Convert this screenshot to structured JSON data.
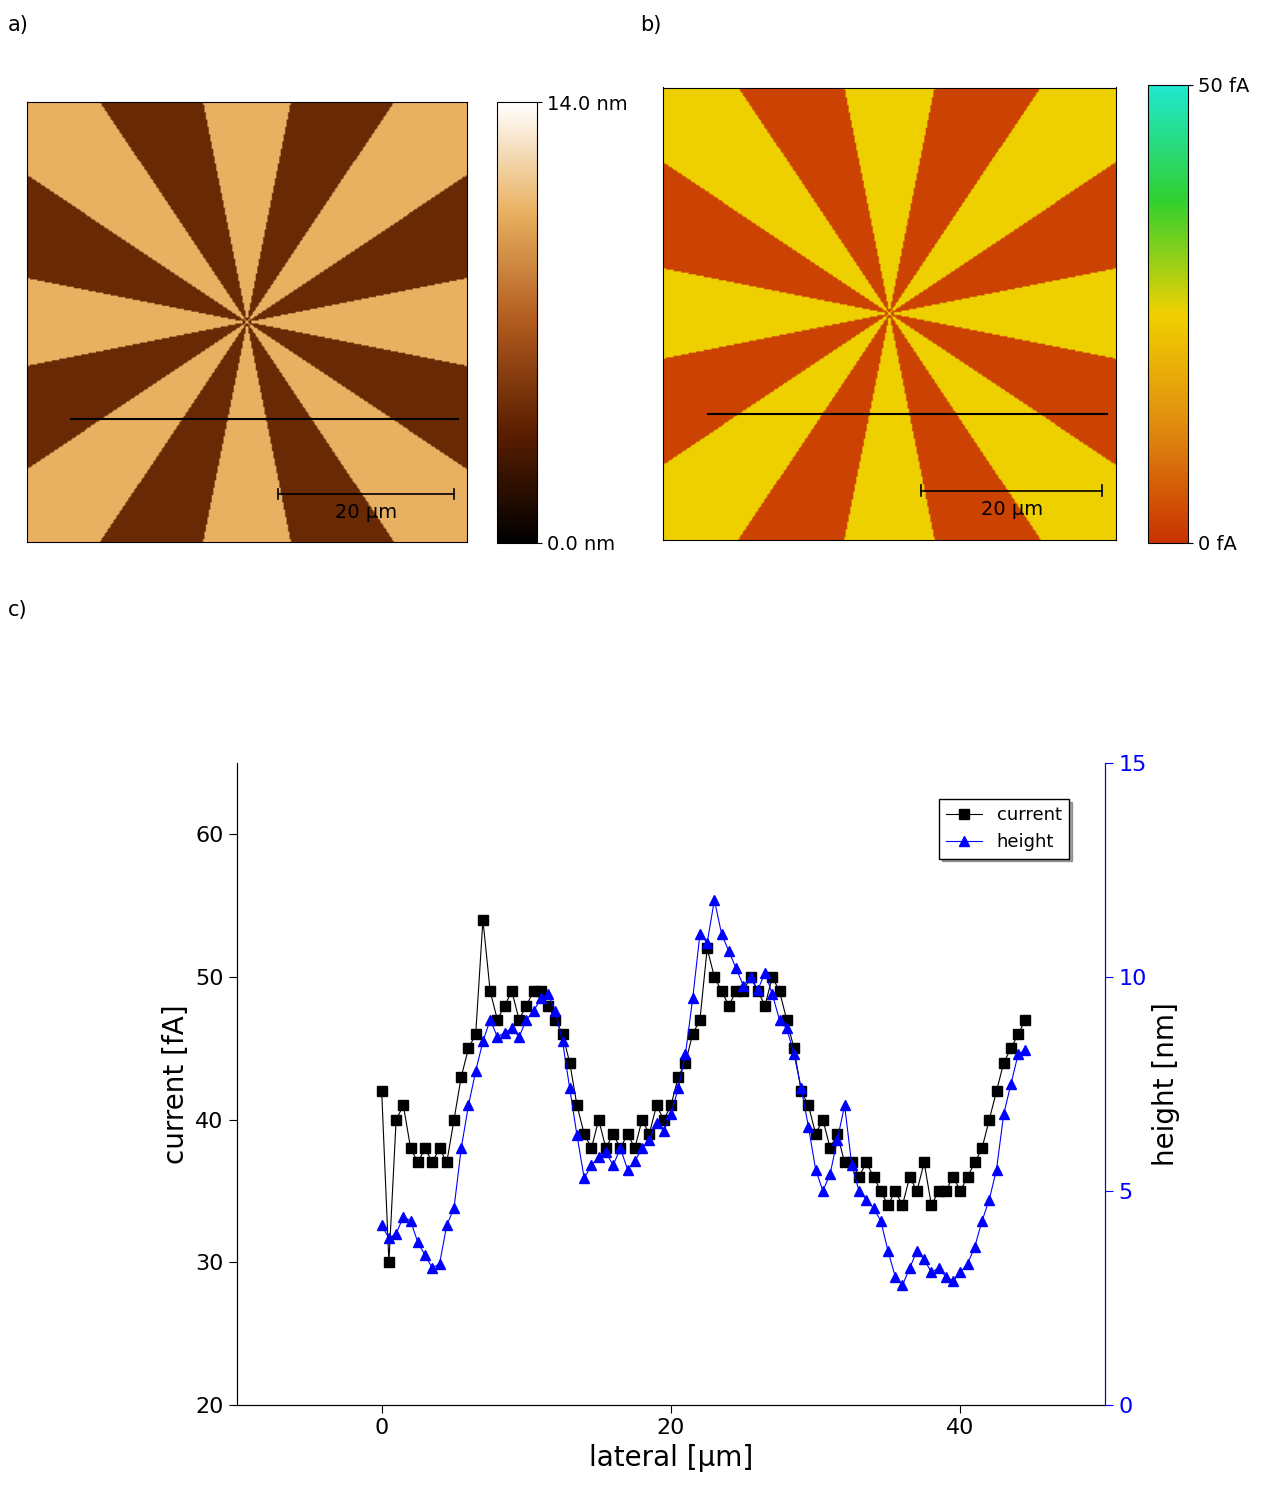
{
  "chart_data": [
    {
      "type": "image",
      "panel_label": "a)",
      "xlim": [
        0,
        50
      ],
      "ylim": [
        0,
        50
      ],
      "colorbar_lim": [
        0,
        14
      ],
      "colorbar_ticks": [
        {
          "value": 14,
          "label": "14.0 nm"
        },
        {
          "value": 0,
          "label": "0.0 nm"
        }
      ],
      "scale_bar": {
        "value": 20,
        "label": "20 µm"
      }
    },
    {
      "type": "image",
      "panel_label": "b)",
      "xlim": [
        0,
        50
      ],
      "ylim": [
        0,
        50
      ],
      "colorbar_lim": [
        0,
        50
      ],
      "colorbar_ticks": [
        {
          "value": 50,
          "label": "50 fA"
        },
        {
          "value": 0,
          "label": "0 fA"
        }
      ],
      "scale_bar": {
        "value": 20,
        "label": "20 µm"
      }
    },
    {
      "type": "line",
      "panel_label": "c)",
      "x_label": "lateral [µm]",
      "y_label": "current [fA]",
      "y2_label": "height [nm]",
      "xlim": [
        -10,
        50
      ],
      "xticks": [
        0,
        20,
        40
      ],
      "ylim": [
        20,
        65
      ],
      "yticks": [
        20,
        30,
        40,
        50,
        60
      ],
      "y2lim": [
        0,
        15
      ],
      "y2ticks": [
        0,
        5,
        10,
        15
      ],
      "legend": "upper right",
      "x": [
        0.0,
        0.5,
        1.0,
        1.5,
        2.0,
        2.5,
        3.0,
        3.5,
        4.0,
        4.5,
        5.0,
        5.5,
        6.0,
        6.5,
        7.0,
        7.5,
        8.0,
        8.5,
        9.0,
        9.5,
        10.0,
        10.5,
        11.0,
        11.5,
        12.0,
        12.5,
        13.0,
        13.5,
        14.0,
        14.5,
        15.0,
        15.5,
        16.0,
        16.5,
        17.0,
        17.5,
        18.0,
        18.5,
        19.0,
        19.5,
        20.0,
        20.5,
        21.0,
        21.5,
        22.0,
        22.5,
        23.0,
        23.5,
        24.0,
        24.5,
        25.0,
        25.5,
        26.0,
        26.5,
        27.0,
        27.5,
        28.0,
        28.5,
        29.0,
        29.5,
        30.0,
        30.5,
        31.0,
        31.5,
        32.0,
        32.5,
        33.0,
        33.5,
        34.0,
        34.5,
        35.0,
        35.5,
        36.0,
        36.5,
        37.0,
        37.5,
        38.0,
        38.5,
        39.0,
        39.5,
        40.0,
        40.5,
        41.0,
        41.5,
        42.0,
        42.5,
        43.0,
        43.5,
        44.0,
        44.5
      ],
      "series": [
        {
          "name": "current",
          "color": "#000000",
          "marker": "square",
          "line_style": "solid",
          "values": [
            42,
            30,
            40,
            41,
            38,
            37,
            38,
            37,
            38,
            37,
            40,
            43,
            45,
            46,
            54,
            49,
            47,
            48,
            49,
            47,
            48,
            49,
            49,
            48,
            47,
            46,
            44,
            41,
            39,
            38,
            40,
            38,
            39,
            38,
            39,
            38,
            40,
            39,
            41,
            40,
            41,
            43,
            44,
            46,
            47,
            52,
            50,
            49,
            48,
            49,
            49,
            50,
            49,
            48,
            50,
            49,
            47,
            45,
            42,
            41,
            39,
            40,
            38,
            39,
            37,
            37,
            36,
            37,
            36,
            35,
            34,
            35,
            34,
            36,
            35,
            37,
            34,
            35,
            35,
            36,
            35,
            36,
            37,
            38,
            40,
            42,
            44,
            45,
            46,
            47
          ]
        },
        {
          "name": "height",
          "color": "#0000ff",
          "marker": "triangle",
          "line_style": "solid",
          "axis": "y2",
          "values": [
            4.2,
            3.9,
            4.0,
            4.4,
            4.3,
            3.8,
            3.5,
            3.2,
            3.3,
            4.2,
            4.6,
            6.0,
            7.0,
            7.8,
            8.5,
            9.0,
            8.6,
            8.7,
            8.8,
            8.6,
            9.0,
            9.2,
            9.5,
            9.6,
            9.2,
            8.5,
            7.4,
            6.3,
            5.3,
            5.6,
            5.8,
            5.9,
            5.6,
            6.0,
            5.5,
            5.7,
            6.0,
            6.2,
            6.6,
            6.4,
            6.8,
            7.4,
            8.2,
            9.5,
            11.0,
            10.8,
            11.8,
            11.0,
            10.6,
            10.2,
            9.8,
            10.0,
            9.7,
            10.1,
            9.6,
            9.0,
            8.8,
            8.2,
            7.4,
            6.5,
            5.5,
            5.0,
            5.4,
            6.2,
            7.0,
            5.6,
            5.0,
            4.8,
            4.6,
            4.3,
            3.6,
            3.0,
            2.8,
            3.2,
            3.6,
            3.4,
            3.1,
            3.2,
            3.0,
            2.9,
            3.1,
            3.3,
            3.7,
            4.3,
            4.8,
            5.5,
            6.8,
            7.5,
            8.2,
            8.3
          ]
        }
      ]
    }
  ]
}
